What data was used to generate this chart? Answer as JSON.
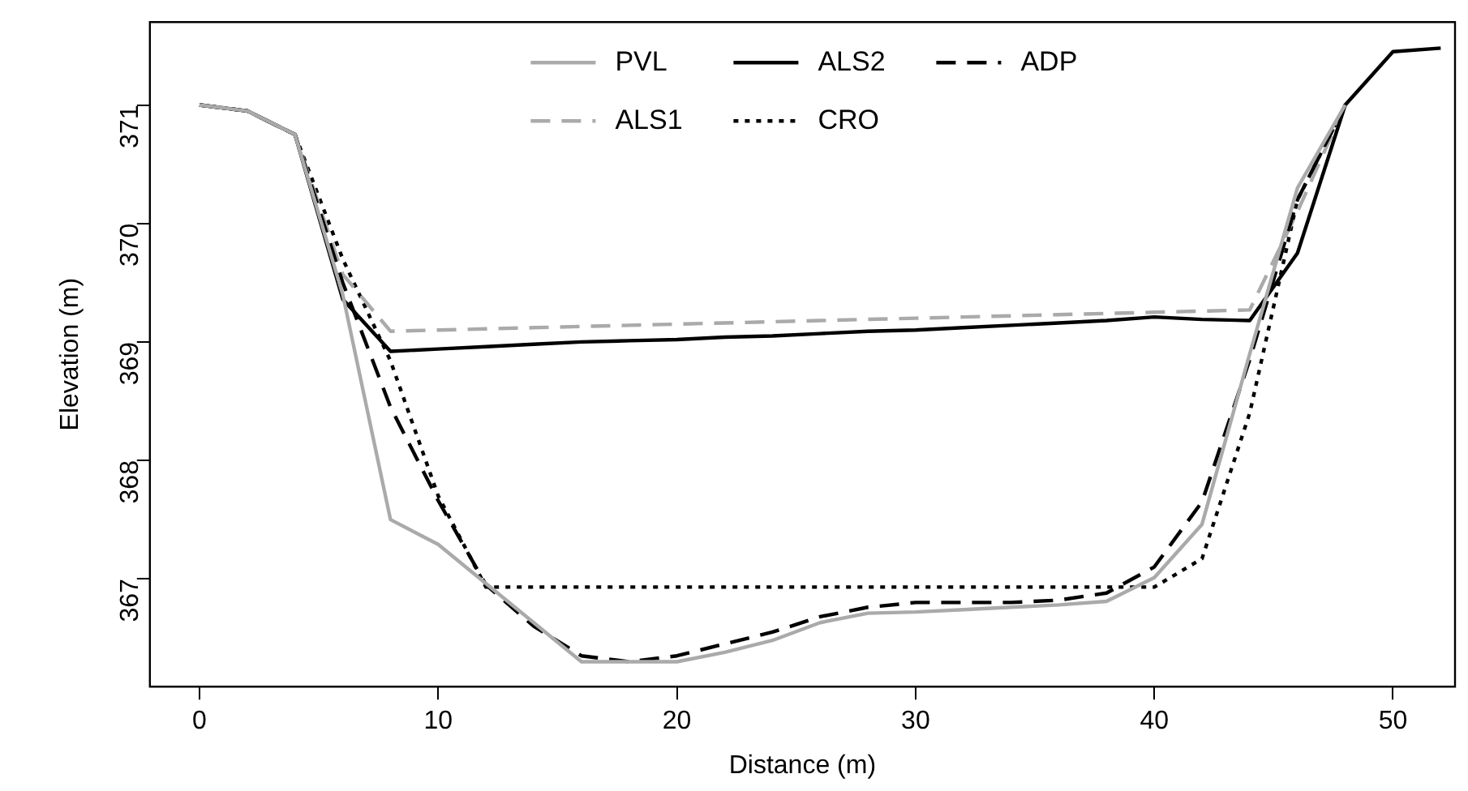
{
  "chart_data": {
    "type": "line",
    "xlabel": "Distance (m)",
    "ylabel": "Elevation (m)",
    "xlim": [
      -2.08,
      52.6
    ],
    "ylim": [
      366.09,
      371.7
    ],
    "xticks": [
      0,
      10,
      20,
      30,
      40,
      50
    ],
    "yticks": [
      367,
      368,
      369,
      370,
      371
    ],
    "grid": false,
    "legend": "top",
    "marker": "none",
    "series": [
      {
        "name": "PVL",
        "color": "#aaaaaa",
        "line_style": "solid",
        "x": [
          0,
          2,
          4,
          6,
          8,
          10,
          12,
          14,
          16,
          18,
          20,
          22,
          24,
          26,
          28,
          30,
          32,
          34,
          36,
          38,
          40,
          42,
          44,
          46,
          48
        ],
        "values": [
          371,
          370.95,
          370.75,
          369.4,
          367.5,
          367.29,
          366.96,
          366.63,
          366.3,
          366.3,
          366.3,
          366.38,
          366.48,
          366.63,
          366.71,
          366.72,
          366.74,
          366.76,
          366.78,
          366.81,
          367.01,
          367.46,
          368.9,
          370.3,
          371
        ]
      },
      {
        "name": "ALS2",
        "color": "#000000",
        "line_style": "solid",
        "x": [
          0,
          2,
          4,
          6,
          8,
          10,
          12,
          14,
          16,
          18,
          20,
          22,
          24,
          26,
          28,
          30,
          32,
          34,
          36,
          38,
          40,
          42,
          44,
          46,
          48,
          50,
          52
        ],
        "values": [
          371,
          370.95,
          370.75,
          369.36,
          368.92,
          368.94,
          368.96,
          368.98,
          369,
          369.01,
          369.02,
          369.04,
          369.05,
          369.07,
          369.09,
          369.1,
          369.12,
          369.14,
          369.16,
          369.18,
          369.21,
          369.19,
          369.18,
          369.75,
          371,
          371.45,
          371.48
        ]
      },
      {
        "name": "ADP",
        "color": "#000000",
        "line_style": "dashed",
        "x": [
          0,
          2,
          4,
          6,
          8,
          10,
          12,
          14,
          16,
          18,
          20,
          22,
          24,
          26,
          28,
          30,
          32,
          34,
          36,
          38,
          40,
          42,
          44,
          46,
          48
        ],
        "values": [
          371,
          370.95,
          370.75,
          369.5,
          368.45,
          367.66,
          366.95,
          366.6,
          366.35,
          366.3,
          366.35,
          366.45,
          366.55,
          366.68,
          366.76,
          366.8,
          366.8,
          366.8,
          366.82,
          366.88,
          367.1,
          367.65,
          368.85,
          370.2,
          371
        ]
      },
      {
        "name": "ALS1",
        "color": "#aaaaaa",
        "line_style": "dashed",
        "x": [
          0,
          2,
          4,
          6,
          8,
          10,
          12,
          14,
          16,
          18,
          20,
          22,
          24,
          26,
          28,
          30,
          32,
          34,
          36,
          38,
          40,
          42,
          44,
          46,
          48
        ],
        "values": [
          371,
          370.95,
          370.75,
          369.57,
          369.09,
          369.1,
          369.11,
          369.12,
          369.13,
          369.14,
          369.15,
          369.16,
          369.17,
          369.18,
          369.19,
          369.2,
          369.21,
          369.22,
          369.23,
          369.24,
          369.25,
          369.26,
          369.27,
          370.1,
          371
        ]
      },
      {
        "name": "CRO",
        "color": "#000000",
        "line_style": "dotted",
        "x": [
          0,
          2,
          4,
          6,
          8,
          10,
          12,
          14,
          16,
          18,
          20,
          22,
          24,
          26,
          28,
          30,
          32,
          34,
          36,
          38,
          40,
          42,
          44,
          46,
          48
        ],
        "values": [
          371,
          370.95,
          370.75,
          369.7,
          368.84,
          367.7,
          366.93,
          366.93,
          366.93,
          366.93,
          366.93,
          366.93,
          366.93,
          366.93,
          366.93,
          366.93,
          366.93,
          366.93,
          366.93,
          366.93,
          366.93,
          367.17,
          368.4,
          370.2,
          371
        ]
      }
    ]
  }
}
